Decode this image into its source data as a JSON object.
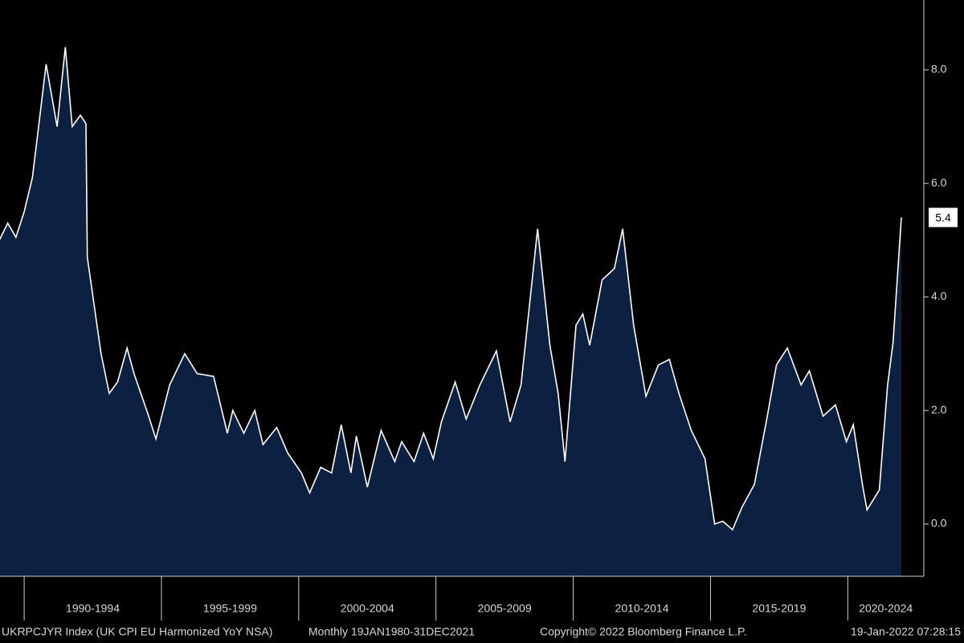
{
  "chart_data": {
    "type": "area",
    "x": [
      1989.1,
      1989.4,
      1989.7,
      1990.0,
      1990.3,
      1990.5,
      1990.8,
      1991.2,
      1991.5,
      1991.75,
      1992.05,
      1992.25,
      1992.3,
      1992.8,
      1993.1,
      1993.4,
      1993.75,
      1994.0,
      1994.5,
      1994.8,
      1995.3,
      1995.85,
      1996.3,
      1996.9,
      1997.4,
      1997.6,
      1998.0,
      1998.4,
      1998.7,
      1999.2,
      1999.6,
      2000.1,
      2000.4,
      2000.8,
      2001.2,
      2001.55,
      2001.9,
      2002.1,
      2002.5,
      2003.0,
      2003.5,
      2003.75,
      2004.2,
      2004.55,
      2004.9,
      2005.2,
      2005.7,
      2006.1,
      2006.6,
      2007.2,
      2007.7,
      2008.1,
      2008.7,
      2009.15,
      2009.45,
      2009.7,
      2010.1,
      2010.35,
      2010.6,
      2011.05,
      2011.5,
      2011.8,
      2012.2,
      2012.65,
      2013.1,
      2013.5,
      2013.85,
      2014.3,
      2014.8,
      2015.15,
      2015.45,
      2015.8,
      2016.15,
      2016.6,
      2017.05,
      2017.4,
      2017.8,
      2018.3,
      2018.6,
      2019.1,
      2019.55,
      2019.95,
      2020.2,
      2020.55,
      2020.7,
      2021.15,
      2021.45,
      2021.65,
      2021.95
    ],
    "series": [
      {
        "name": "UKRPCJYR Index",
        "color": "#ffffff",
        "fill": "#0c2142",
        "values": [
          5.0,
          5.3,
          5.05,
          5.5,
          6.1,
          6.9,
          8.1,
          7.0,
          8.4,
          7.0,
          7.2,
          7.05,
          4.7,
          3.0,
          2.3,
          2.5,
          3.1,
          2.65,
          1.95,
          1.5,
          2.45,
          3.0,
          2.65,
          2.6,
          1.6,
          2.0,
          1.6,
          2.0,
          1.4,
          1.7,
          1.25,
          0.9,
          0.55,
          1.0,
          0.9,
          1.75,
          0.9,
          1.55,
          0.65,
          1.65,
          1.1,
          1.45,
          1.1,
          1.6,
          1.15,
          1.8,
          2.5,
          1.85,
          2.45,
          3.05,
          1.8,
          2.45,
          5.2,
          3.15,
          2.3,
          1.1,
          3.5,
          3.7,
          3.15,
          4.3,
          4.5,
          5.2,
          3.5,
          2.25,
          2.8,
          2.9,
          2.3,
          1.65,
          1.15,
          0.0,
          0.05,
          -0.1,
          0.3,
          0.7,
          1.85,
          2.8,
          3.1,
          2.45,
          2.7,
          1.9,
          2.1,
          1.45,
          1.75,
          0.65,
          0.25,
          0.6,
          2.45,
          3.2,
          5.4
        ]
      }
    ],
    "last_value_label": "5.4",
    "xlim": [
      1989.12,
      2022.77
    ],
    "xticks": [
      {
        "value": 1990,
        "label": "1990-1994"
      },
      {
        "value": 1995,
        "label": "1995-1999"
      },
      {
        "value": 2000,
        "label": "2000-2004"
      },
      {
        "value": 2005,
        "label": "2005-2009"
      },
      {
        "value": 2010,
        "label": "2010-2014"
      },
      {
        "value": 2015,
        "label": "2015-2019"
      },
      {
        "value": 2020,
        "label": "2020-2024"
      }
    ],
    "ylim": [
      -0.92,
      9.23
    ],
    "yticks": [
      {
        "value": 0,
        "label": "0.0"
      },
      {
        "value": 2,
        "label": "2.0"
      },
      {
        "value": 4,
        "label": "4.0"
      },
      {
        "value": 6,
        "label": "6.0"
      },
      {
        "value": 8,
        "label": "8.0"
      }
    ],
    "footer": {
      "index": "UKRPCJYR Index (UK CPI EU Harmonized YoY NSA)",
      "range": "Monthly 19JAN1980-31DEC2021",
      "copyright": "Copyright© 2022 Bloomberg Finance L.P.",
      "timestamp": "19-Jan-2022 07:28:15"
    }
  }
}
